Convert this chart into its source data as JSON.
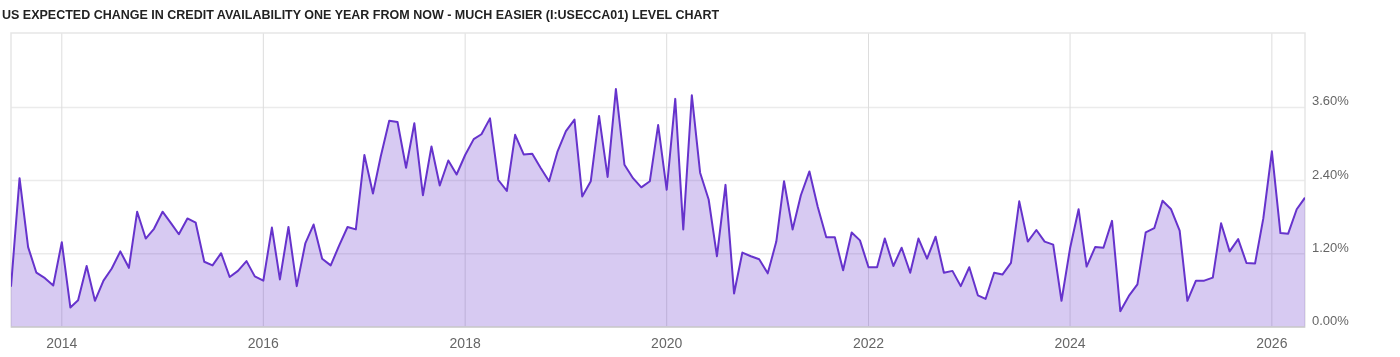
{
  "chart_data": {
    "type": "area",
    "title": "US EXPECTED CHANGE IN CREDIT AVAILABILITY ONE YEAR FROM NOW - MUCH EASIER (I:USECCA01) LEVEL CHART",
    "x": [
      "2013-07",
      "2013-08",
      "2013-09",
      "2013-10",
      "2013-11",
      "2013-12",
      "2014-01",
      "2014-02",
      "2014-03",
      "2014-04",
      "2014-05",
      "2014-06",
      "2014-07",
      "2014-08",
      "2014-09",
      "2014-10",
      "2014-11",
      "2014-12",
      "2015-01",
      "2015-02",
      "2015-03",
      "2015-04",
      "2015-05",
      "2015-06",
      "2015-07",
      "2015-08",
      "2015-09",
      "2015-10",
      "2015-11",
      "2015-12",
      "2016-01",
      "2016-02",
      "2016-03",
      "2016-04",
      "2016-05",
      "2016-06",
      "2016-07",
      "2016-08",
      "2016-09",
      "2016-10",
      "2016-11",
      "2016-12",
      "2017-01",
      "2017-02",
      "2017-03",
      "2017-04",
      "2017-05",
      "2017-06",
      "2017-07",
      "2017-08",
      "2017-09",
      "2017-10",
      "2017-11",
      "2017-12",
      "2018-01",
      "2018-02",
      "2018-03",
      "2018-04",
      "2018-05",
      "2018-06",
      "2018-07",
      "2018-08",
      "2018-09",
      "2018-10",
      "2018-11",
      "2018-12",
      "2019-01",
      "2019-02",
      "2019-03",
      "2019-04",
      "2019-05",
      "2019-06",
      "2019-07",
      "2019-08",
      "2019-09",
      "2019-10",
      "2019-11",
      "2019-12",
      "2020-01",
      "2020-02",
      "2020-03",
      "2020-04",
      "2020-05",
      "2020-06",
      "2020-07",
      "2020-08",
      "2020-09",
      "2020-10",
      "2020-11",
      "2020-12",
      "2021-01",
      "2021-02",
      "2021-03",
      "2021-04",
      "2021-05",
      "2021-06",
      "2021-07",
      "2021-08",
      "2021-09",
      "2021-10",
      "2021-11",
      "2021-12",
      "2022-01",
      "2022-02",
      "2022-03",
      "2022-04",
      "2022-05",
      "2022-06",
      "2022-07",
      "2022-08",
      "2022-09",
      "2022-10",
      "2022-11",
      "2022-12",
      "2023-01",
      "2023-02",
      "2023-03",
      "2023-04",
      "2023-05",
      "2023-06",
      "2023-07",
      "2023-08",
      "2023-09",
      "2023-10",
      "2023-11",
      "2023-12",
      "2024-01",
      "2024-02",
      "2024-03",
      "2024-04",
      "2024-05",
      "2024-06",
      "2024-07",
      "2024-08",
      "2024-09",
      "2024-10",
      "2024-11",
      "2024-12",
      "2025-01",
      "2025-02",
      "2025-03",
      "2025-04",
      "2025-05",
      "2025-06",
      "2025-07",
      "2025-08",
      "2025-09",
      "2025-10",
      "2025-11",
      "2025-12",
      "2026-01",
      "2026-02",
      "2026-03",
      "2026-04",
      "2026-05"
    ],
    "series": [
      {
        "color": "#6633cc",
        "values": [
          0.66,
          2.44,
          1.31,
          0.89,
          0.8,
          0.68,
          1.39,
          0.32,
          0.44,
          1.0,
          0.43,
          0.76,
          0.96,
          1.24,
          0.97,
          1.89,
          1.45,
          1.61,
          1.89,
          1.7,
          1.52,
          1.78,
          1.71,
          1.07,
          1.01,
          1.21,
          0.82,
          0.92,
          1.08,
          0.83,
          0.76,
          1.63,
          0.78,
          1.64,
          0.67,
          1.37,
          1.68,
          1.12,
          1.01,
          1.33,
          1.64,
          1.6,
          2.82,
          2.19,
          2.79,
          3.38,
          3.36,
          2.61,
          3.34,
          2.16,
          2.96,
          2.32,
          2.73,
          2.5,
          2.82,
          3.08,
          3.16,
          3.42,
          2.41,
          2.23,
          3.15,
          2.83,
          2.84,
          2.61,
          2.39,
          2.87,
          3.21,
          3.4,
          2.14,
          2.39,
          3.46,
          2.46,
          3.9,
          2.66,
          2.44,
          2.29,
          2.39,
          3.31,
          2.25,
          3.74,
          1.6,
          3.8,
          2.53,
          2.09,
          1.16,
          2.33,
          0.55,
          1.22,
          1.16,
          1.11,
          0.88,
          1.4,
          2.39,
          1.6,
          2.16,
          2.55,
          1.97,
          1.47,
          1.47,
          0.93,
          1.55,
          1.42,
          0.98,
          0.98,
          1.45,
          1.0,
          1.3,
          0.89,
          1.45,
          1.12,
          1.48,
          0.89,
          0.92,
          0.67,
          0.98,
          0.52,
          0.46,
          0.89,
          0.86,
          1.05,
          2.06,
          1.4,
          1.59,
          1.4,
          1.35,
          0.43,
          1.29,
          1.93,
          0.99,
          1.31,
          1.3,
          1.74,
          0.26,
          0.51,
          0.7,
          1.55,
          1.62,
          2.07,
          1.93,
          1.58,
          0.43,
          0.76,
          0.76,
          0.81,
          1.7,
          1.24,
          1.44,
          1.05,
          1.04,
          1.78,
          2.88,
          1.54,
          1.53,
          1.93,
          2.12
        ]
      }
    ],
    "xlim": [
      "2013-07",
      "2026-05"
    ],
    "xticks": [
      {
        "value": "2014-01",
        "label": "2014"
      },
      {
        "value": "2016-01",
        "label": "2016"
      },
      {
        "value": "2018-01",
        "label": "2018"
      },
      {
        "value": "2020-01",
        "label": "2020"
      },
      {
        "value": "2022-01",
        "label": "2022"
      },
      {
        "value": "2024-01",
        "label": "2024"
      },
      {
        "value": "2026-01",
        "label": "2026"
      }
    ],
    "ylim": [
      0,
      4.82
    ],
    "yticks": [
      {
        "value": 0,
        "label": "0.00%"
      },
      {
        "value": 1.2,
        "label": "1.20%"
      },
      {
        "value": 2.4,
        "label": "2.40%"
      },
      {
        "value": 3.6,
        "label": "3.60%"
      }
    ],
    "grid": true
  }
}
